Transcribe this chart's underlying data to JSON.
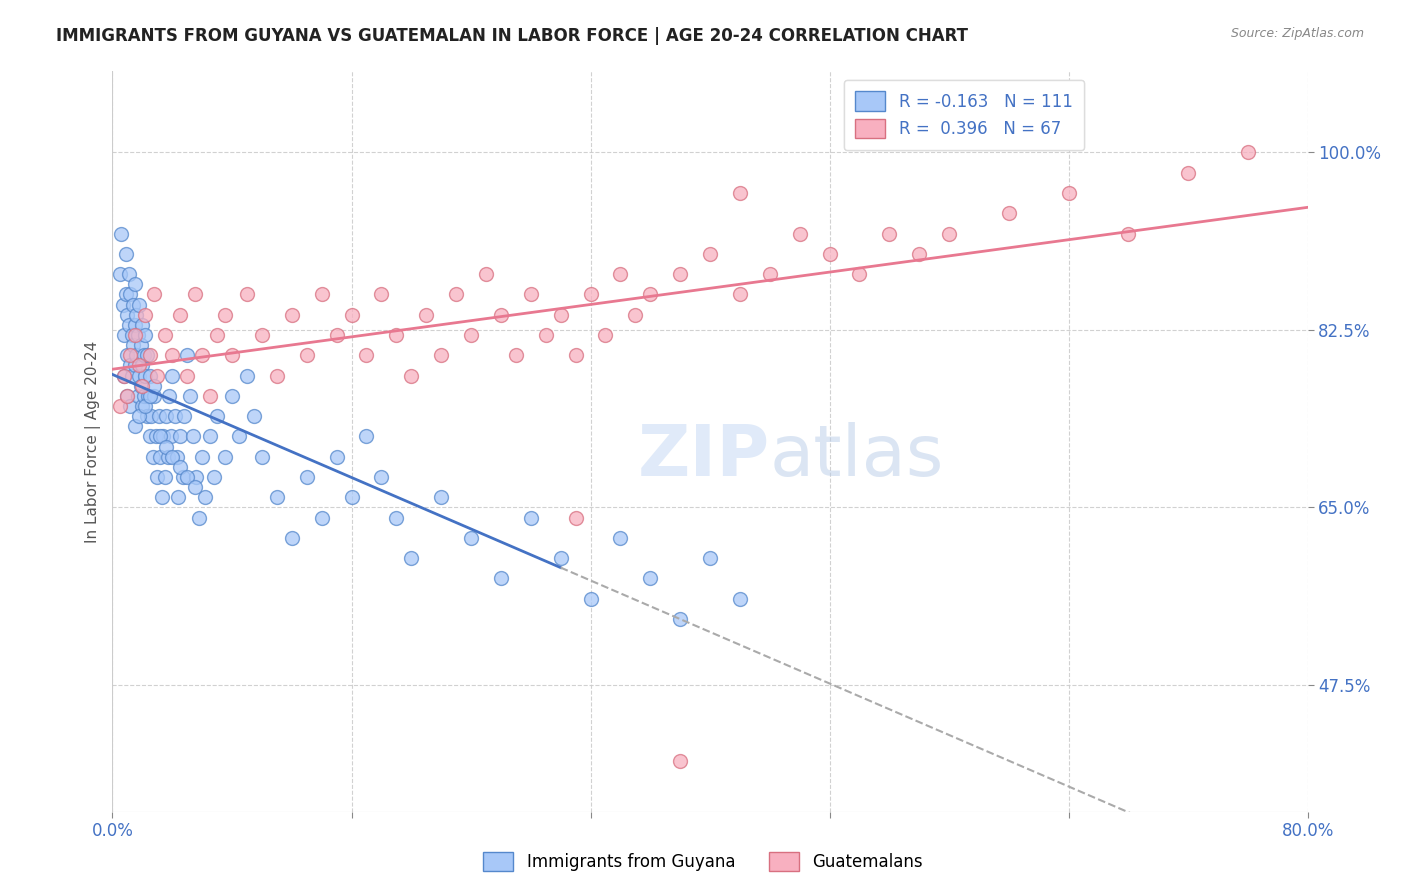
{
  "title": "IMMIGRANTS FROM GUYANA VS GUATEMALAN IN LABOR FORCE | AGE 20-24 CORRELATION CHART",
  "source_text": "Source: ZipAtlas.com",
  "ylabel": "In Labor Force | Age 20-24",
  "ytick_labels": [
    "100.0%",
    "82.5%",
    "65.0%",
    "47.5%"
  ],
  "ytick_values": [
    1.0,
    0.825,
    0.65,
    0.475
  ],
  "xlim": [
    0.0,
    0.8
  ],
  "ylim": [
    0.35,
    1.08
  ],
  "legend_entry1": "R = -0.163   N = 111",
  "legend_entry2": "R =  0.396   N = 67",
  "legend_label1": "Immigrants from Guyana",
  "legend_label2": "Guatemalans",
  "color_guyana": "#a8c8f8",
  "color_guatemalan": "#f8b0c0",
  "color_guyana_edge": "#5588cc",
  "color_guatemalan_edge": "#d87080",
  "color_guyana_line": "#4472c4",
  "color_guatemalan_line": "#e87890",
  "color_dashed": "#aaaaaa",
  "watermark_color": "#ccddf5",
  "axis_label_color": "#4472c4",
  "title_color": "#222222",
  "source_color": "#888888",
  "ylabel_color": "#555555",
  "guyana_x": [
    0.005,
    0.006,
    0.007,
    0.008,
    0.008,
    0.009,
    0.009,
    0.01,
    0.01,
    0.01,
    0.011,
    0.011,
    0.012,
    0.012,
    0.012,
    0.013,
    0.013,
    0.014,
    0.014,
    0.015,
    0.015,
    0.015,
    0.016,
    0.016,
    0.017,
    0.017,
    0.018,
    0.018,
    0.019,
    0.019,
    0.02,
    0.02,
    0.02,
    0.021,
    0.021,
    0.022,
    0.022,
    0.023,
    0.023,
    0.024,
    0.025,
    0.025,
    0.026,
    0.027,
    0.028,
    0.029,
    0.03,
    0.031,
    0.032,
    0.033,
    0.034,
    0.035,
    0.036,
    0.037,
    0.038,
    0.039,
    0.04,
    0.042,
    0.043,
    0.044,
    0.045,
    0.047,
    0.048,
    0.05,
    0.052,
    0.054,
    0.056,
    0.058,
    0.06,
    0.062,
    0.065,
    0.068,
    0.07,
    0.075,
    0.08,
    0.085,
    0.09,
    0.095,
    0.1,
    0.11,
    0.12,
    0.13,
    0.14,
    0.15,
    0.16,
    0.17,
    0.18,
    0.19,
    0.2,
    0.22,
    0.24,
    0.26,
    0.28,
    0.3,
    0.32,
    0.34,
    0.36,
    0.38,
    0.4,
    0.42,
    0.015,
    0.018,
    0.022,
    0.025,
    0.028,
    0.032,
    0.036,
    0.04,
    0.045,
    0.05,
    0.055
  ],
  "guyana_y": [
    0.88,
    0.92,
    0.85,
    0.82,
    0.78,
    0.9,
    0.86,
    0.84,
    0.8,
    0.76,
    0.88,
    0.83,
    0.86,
    0.79,
    0.75,
    0.82,
    0.78,
    0.85,
    0.81,
    0.87,
    0.83,
    0.79,
    0.84,
    0.8,
    0.76,
    0.82,
    0.78,
    0.85,
    0.81,
    0.77,
    0.83,
    0.79,
    0.75,
    0.8,
    0.76,
    0.82,
    0.78,
    0.74,
    0.8,
    0.76,
    0.72,
    0.78,
    0.74,
    0.7,
    0.76,
    0.72,
    0.68,
    0.74,
    0.7,
    0.66,
    0.72,
    0.68,
    0.74,
    0.7,
    0.76,
    0.72,
    0.78,
    0.74,
    0.7,
    0.66,
    0.72,
    0.68,
    0.74,
    0.8,
    0.76,
    0.72,
    0.68,
    0.64,
    0.7,
    0.66,
    0.72,
    0.68,
    0.74,
    0.7,
    0.76,
    0.72,
    0.78,
    0.74,
    0.7,
    0.66,
    0.62,
    0.68,
    0.64,
    0.7,
    0.66,
    0.72,
    0.68,
    0.64,
    0.6,
    0.66,
    0.62,
    0.58,
    0.64,
    0.6,
    0.56,
    0.62,
    0.58,
    0.54,
    0.6,
    0.56,
    0.73,
    0.74,
    0.75,
    0.76,
    0.77,
    0.72,
    0.71,
    0.7,
    0.69,
    0.68,
    0.67
  ],
  "guatemalan_x": [
    0.005,
    0.008,
    0.01,
    0.012,
    0.015,
    0.018,
    0.02,
    0.022,
    0.025,
    0.028,
    0.03,
    0.035,
    0.04,
    0.045,
    0.05,
    0.055,
    0.06,
    0.065,
    0.07,
    0.075,
    0.08,
    0.09,
    0.1,
    0.11,
    0.12,
    0.13,
    0.14,
    0.15,
    0.16,
    0.17,
    0.18,
    0.19,
    0.2,
    0.21,
    0.22,
    0.23,
    0.24,
    0.25,
    0.26,
    0.27,
    0.28,
    0.29,
    0.3,
    0.31,
    0.32,
    0.33,
    0.34,
    0.35,
    0.36,
    0.38,
    0.4,
    0.42,
    0.44,
    0.46,
    0.48,
    0.5,
    0.52,
    0.54,
    0.56,
    0.6,
    0.64,
    0.68,
    0.72,
    0.76,
    0.31,
    0.38,
    0.42
  ],
  "guatemalan_y": [
    0.75,
    0.78,
    0.76,
    0.8,
    0.82,
    0.79,
    0.77,
    0.84,
    0.8,
    0.86,
    0.78,
    0.82,
    0.8,
    0.84,
    0.78,
    0.86,
    0.8,
    0.76,
    0.82,
    0.84,
    0.8,
    0.86,
    0.82,
    0.78,
    0.84,
    0.8,
    0.86,
    0.82,
    0.84,
    0.8,
    0.86,
    0.82,
    0.78,
    0.84,
    0.8,
    0.86,
    0.82,
    0.88,
    0.84,
    0.8,
    0.86,
    0.82,
    0.84,
    0.8,
    0.86,
    0.82,
    0.88,
    0.84,
    0.86,
    0.88,
    0.9,
    0.86,
    0.88,
    0.92,
    0.9,
    0.88,
    0.92,
    0.9,
    0.92,
    0.94,
    0.96,
    0.92,
    0.98,
    1.0,
    0.64,
    0.4,
    0.96
  ]
}
